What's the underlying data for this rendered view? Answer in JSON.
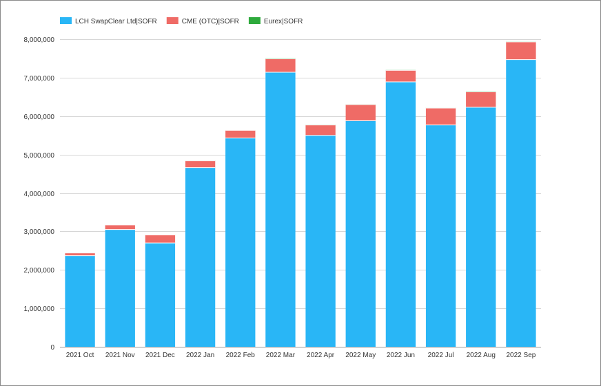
{
  "chart_data": {
    "type": "bar",
    "stacked": true,
    "categories": [
      "2021 Oct",
      "2021 Nov",
      "2021 Dec",
      "2022 Jan",
      "2022 Feb",
      "2022 Mar",
      "2022 Apr",
      "2022 May",
      "2022 Jun",
      "2022 Jul",
      "2022 Aug",
      "2022 Sep"
    ],
    "series": [
      {
        "name": "LCH SwapClear Ltd|SOFR",
        "color": "#29b6f6",
        "values": [
          2370000,
          3050000,
          2700000,
          4660000,
          5430000,
          7140000,
          5500000,
          5880000,
          6890000,
          5770000,
          6230000,
          7470000
        ]
      },
      {
        "name": "CME (OTC)|SOFR",
        "color": "#ef6b66",
        "values": [
          70000,
          120000,
          210000,
          180000,
          200000,
          350000,
          270000,
          420000,
          300000,
          440000,
          400000,
          460000
        ]
      },
      {
        "name": "Eurex|SOFR",
        "color": "#2eaa3c",
        "values": [
          5000,
          5000,
          5000,
          5000,
          5000,
          15000,
          10000,
          10000,
          10000,
          10000,
          15000,
          10000
        ]
      }
    ],
    "ylim": [
      0,
      8000000
    ],
    "yticks": [
      0,
      1000000,
      2000000,
      3000000,
      4000000,
      5000000,
      6000000,
      7000000,
      8000000
    ],
    "ytick_labels": [
      "0",
      "1,000,000",
      "2,000,000",
      "3,000,000",
      "4,000,000",
      "5,000,000",
      "6,000,000",
      "7,000,000",
      "8,000,000"
    ],
    "grid": true,
    "legend_position": "top-left"
  }
}
